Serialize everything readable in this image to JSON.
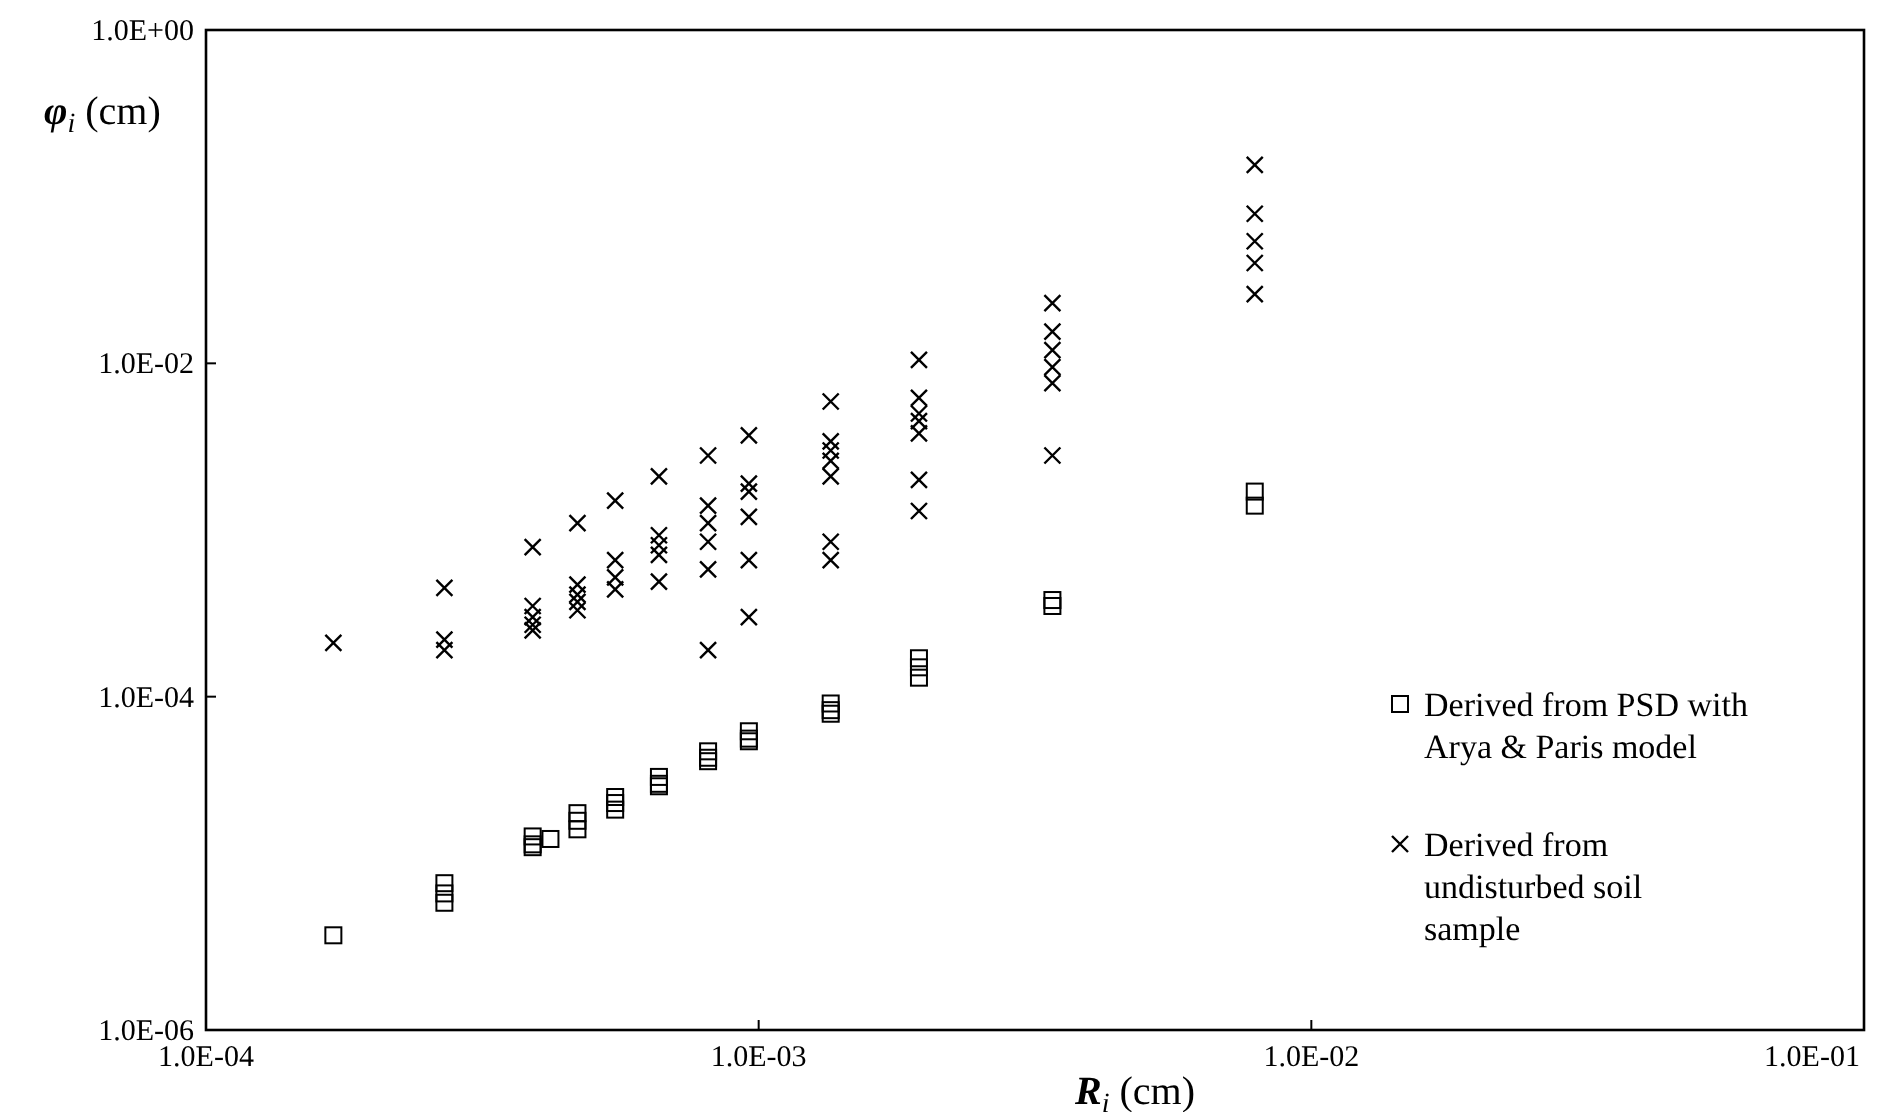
{
  "chart_data": {
    "type": "scatter",
    "xlabel": "R$_{i}$ (cm)",
    "ylabel": "φ$_{i}$ (cm)",
    "log": "xy",
    "xlim": [
      0.0001,
      0.1
    ],
    "ylim": [
      1e-06,
      1
    ],
    "xticks": [
      {
        "value": 0.0001,
        "label": "1.0E-04"
      },
      {
        "value": 0.001,
        "label": "1.0E-03"
      },
      {
        "value": 0.01,
        "label": "1.0E-02"
      },
      {
        "value": 0.1,
        "label": "1.0E-01"
      }
    ],
    "yticks": [
      {
        "value": 1e-06,
        "label": "1.0E-06"
      },
      {
        "value": 0.0001,
        "label": "1.0E-04"
      },
      {
        "value": 0.01,
        "label": "1.0E-02"
      },
      {
        "value": 1,
        "label": "1.0E+00"
      }
    ],
    "grid": false,
    "legend": "bottom right",
    "series": [
      {
        "name": "Derived from PSD with Arya & Paris model",
        "color": "#000000",
        "marker": "square",
        "x": [
          0.00017,
          0.00027,
          0.00027,
          0.00027,
          0.00039,
          0.00039,
          0.00039,
          0.00042,
          0.00047,
          0.00047,
          0.00047,
          0.00055,
          0.00055,
          0.00055,
          0.00066,
          0.00066,
          0.00066,
          0.00081,
          0.00081,
          0.00081,
          0.00096,
          0.00096,
          0.00096,
          0.00135,
          0.00135,
          0.00135,
          0.00195,
          0.00195,
          0.00195,
          0.0034,
          0.0034,
          0.0079,
          0.0079
        ],
        "values": [
          3.7e-06,
          7.6e-06,
          6.6e-06,
          5.8e-06,
          1.45e-05,
          1.3e-05,
          1.25e-05,
          1.4e-05,
          2e-05,
          1.8e-05,
          1.6e-05,
          2.5e-05,
          2.3e-05,
          2.1e-05,
          3.3e-05,
          3e-05,
          2.9e-05,
          4.7e-05,
          4.3e-05,
          4.1e-05,
          6.2e-05,
          5.6e-05,
          5.4e-05,
          9.1e-05,
          8.3e-05,
          7.9e-05,
          0.00017,
          0.00015,
          0.00013,
          0.00038,
          0.00035,
          0.0017,
          0.0014
        ]
      },
      {
        "name": "Derived from undisturbed soil sample",
        "color": "#000000",
        "marker": "cross",
        "x": [
          0.00017,
          0.00027,
          0.00027,
          0.00027,
          0.00039,
          0.00039,
          0.00039,
          0.00039,
          0.00039,
          0.00047,
          0.00047,
          0.00047,
          0.00047,
          0.00047,
          0.00055,
          0.00055,
          0.00055,
          0.00055,
          0.00066,
          0.00066,
          0.00066,
          0.00066,
          0.00066,
          0.00081,
          0.00081,
          0.00081,
          0.00081,
          0.00081,
          0.00081,
          0.00096,
          0.00096,
          0.00096,
          0.00096,
          0.00096,
          0.00096,
          0.00135,
          0.00135,
          0.00135,
          0.00135,
          0.00135,
          0.00135,
          0.00135,
          0.00195,
          0.00195,
          0.00195,
          0.00195,
          0.00195,
          0.00195,
          0.00195,
          0.0034,
          0.0034,
          0.0034,
          0.0034,
          0.0034,
          0.0034,
          0.0079,
          0.0079,
          0.0079,
          0.0079,
          0.0079
        ],
        "values": [
          0.00021,
          0.00045,
          0.00022,
          0.00019,
          0.00079,
          0.00035,
          0.0003,
          0.00027,
          0.00025,
          0.0011,
          0.00047,
          0.00041,
          0.00037,
          0.00033,
          0.0015,
          0.00066,
          0.00052,
          0.00044,
          0.0021,
          0.00093,
          0.00081,
          0.00071,
          0.00049,
          0.0028,
          0.0014,
          0.0011,
          0.00085,
          0.00058,
          0.00019,
          0.0037,
          0.0019,
          0.0017,
          0.0012,
          0.00066,
          0.0003,
          0.0059,
          0.0034,
          0.003,
          0.0026,
          0.0021,
          0.00085,
          0.00066,
          0.0105,
          0.0062,
          0.005,
          0.0045,
          0.0038,
          0.002,
          0.0013,
          0.023,
          0.0155,
          0.012,
          0.0095,
          0.0076,
          0.0028,
          0.155,
          0.079,
          0.054,
          0.04,
          0.026
        ]
      }
    ]
  }
}
